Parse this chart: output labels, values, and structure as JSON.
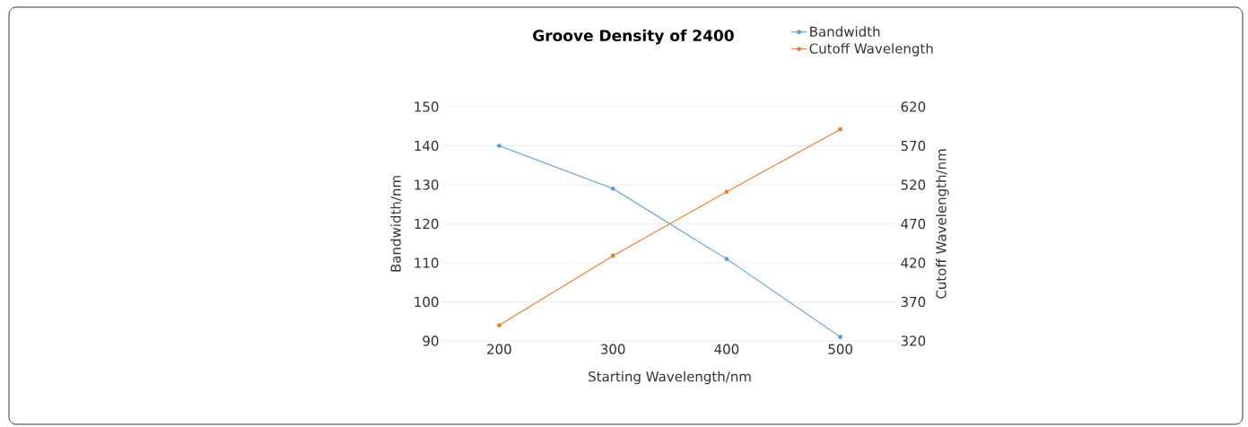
{
  "chart_data": {
    "type": "line",
    "title": "Groove Density of 2400",
    "xlabel": "Starting Wavelength/nm",
    "ylabel": "Bandwidth/nm",
    "y2label": "Cutoff Wavelength/nm",
    "categories": [
      "200",
      "300",
      "400",
      "500"
    ],
    "series": [
      {
        "name": "Bandwidth",
        "color": "#5b9bd5",
        "values": [
          140,
          129,
          111,
          91
        ]
      },
      {
        "name": "Cutoff Wavelength",
        "color": "#ed7d31",
        "values": [
          340,
          429,
          511,
          591
        ],
        "axis": "y2"
      }
    ],
    "ylim": [
      90,
      150
    ],
    "yticks": [
      90,
      100,
      110,
      120,
      130,
      140,
      150
    ],
    "y2lim": [
      320,
      620
    ],
    "y2ticks": [
      320,
      370,
      420,
      470,
      520,
      570,
      620
    ],
    "grid": "y",
    "legend": "top right",
    "marker": "circle",
    "line_style": "solid"
  }
}
